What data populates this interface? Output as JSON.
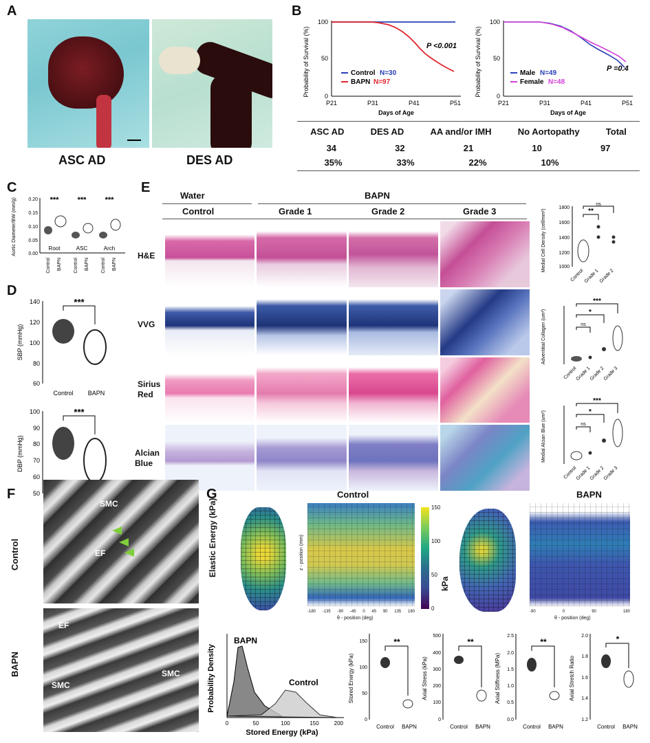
{
  "panels": {
    "A": {
      "label": "A",
      "left_caption": "ASC AD",
      "right_caption": "DES AD"
    },
    "B": {
      "label": "B",
      "p_left": "P <0.001",
      "p_right": "P =0.4",
      "ylabel": "Probability of Survival (%)",
      "xlabel": "Days of Age",
      "xticks": [
        "P21",
        "P31",
        "P41",
        "P51"
      ],
      "yticks": [
        "0",
        "50",
        "100"
      ],
      "legend_left": [
        {
          "name": "Control",
          "n": "N=30",
          "color": "#2a3fb6"
        },
        {
          "name": "BAPN",
          "n": "N=97",
          "color": "#e0232b"
        }
      ],
      "legend_right": [
        {
          "name": "Male",
          "n": "N=49",
          "color": "#2a3fb6"
        },
        {
          "name": "Female",
          "n": "N=48",
          "color": "#d23fd8"
        }
      ],
      "table": {
        "headers": [
          "ASC AD",
          "DES AD",
          "AA and/or IMH",
          "No Aortopathy",
          "Total"
        ],
        "row1": [
          "34",
          "32",
          "21",
          "10",
          "97"
        ],
        "row2": [
          "35%",
          "33%",
          "22%",
          "10%",
          ""
        ]
      }
    },
    "C": {
      "label": "C",
      "ylabel": "Aortic Diameter/BW (mm/g)",
      "groups": [
        "Root",
        "ASC",
        "Arch"
      ],
      "sig": "***",
      "yticks": [
        "0.00",
        "0.05",
        "0.10",
        "0.15",
        "0.20"
      ],
      "xlabels": [
        "Control",
        "BAPN"
      ]
    },
    "D": {
      "label": "D",
      "sbp_label": "SBP (mmHg)",
      "dbp_label": "DBP (mmHg)",
      "sig": "***",
      "sbp_ticks": [
        "60",
        "80",
        "100",
        "120",
        "140"
      ],
      "dbp_ticks": [
        "50",
        "60",
        "70",
        "80",
        "90",
        "100"
      ],
      "xlabels": [
        "Control",
        "BAPN"
      ]
    },
    "E": {
      "label": "E",
      "water": "Water",
      "bapn": "BAPN",
      "cols": [
        "Control",
        "Grade 1",
        "Grade 2",
        "Grade 3"
      ],
      "rows": [
        "H&E",
        "VVG",
        "Sirius Red",
        "Alcian Blue"
      ],
      "chart1_ylabel": "Medial Cell Density (cell/mm²)",
      "chart1_ticks": [
        "1000",
        "1200",
        "1400",
        "1600",
        "1800"
      ],
      "chart2_ylabel": "Adventitial Collagen (um²)",
      "chart3_ylabel": "Medial Alcian Blue (um²)",
      "sig_ns": "ns",
      "sig1": "**",
      "sig2": "*",
      "sig3": "***",
      "xcats3": [
        "Control",
        "Grade 1",
        "Grade 2",
        "Grade 3"
      ],
      "xcats2": [
        "Control",
        "Grade 1",
        "Grade 2"
      ]
    },
    "F": {
      "label": "F",
      "control": "Control",
      "bapn": "BAPN",
      "smc": "SMC",
      "ef": "EF"
    },
    "G": {
      "label": "G",
      "control": "Control",
      "bapn": "BAPN",
      "elastic": "Elastic Energy (kPa)",
      "kpa": "kPa",
      "colorbar_ticks": [
        "150",
        "100",
        "50",
        "0"
      ],
      "xaxis": "θ - position (deg)",
      "zaxis": "z - position (mm)",
      "theta_ticks": [
        "-180",
        "-135",
        "-90",
        "-45",
        "0",
        "45",
        "90",
        "135",
        "180"
      ],
      "density_ylabel": "Probability Density",
      "density_xlabel": "Stored Energy (kPa)",
      "density_ticks": [
        "0",
        "50",
        "100",
        "150",
        "200"
      ],
      "bars": [
        {
          "ylabel": "Stored Energy (kPa)",
          "sig": "**",
          "ticks": [
            "0",
            "50",
            "100",
            "150"
          ]
        },
        {
          "ylabel": "Axial Stress (kPa)",
          "sig": "**",
          "ticks": [
            "0",
            "100",
            "200",
            "300",
            "400",
            "500"
          ]
        },
        {
          "ylabel": "Axial Stiffness (MPa)",
          "sig": "**",
          "ticks": [
            "0.0",
            "0.5",
            "1.0",
            "1.5",
            "2.0",
            "2.5"
          ]
        },
        {
          "ylabel": "Axial Stretch Ratio",
          "sig": "*",
          "ticks": [
            "1.2",
            "1.4",
            "1.6",
            "1.8",
            "2.0"
          ]
        }
      ],
      "xlabels": [
        "Control",
        "BAPN"
      ]
    }
  },
  "chart_data": [
    {
      "type": "line",
      "title": "",
      "xlabel": "Days of Age",
      "ylabel": "Probability of Survival (%)",
      "x": [
        "P21",
        "P31",
        "P41",
        "P51"
      ],
      "ylim": [
        0,
        100
      ],
      "series": [
        {
          "name": "Control",
          "values": [
            100,
            100,
            100,
            100
          ]
        },
        {
          "name": "BAPN",
          "values": [
            100,
            99,
            80,
            40
          ]
        }
      ]
    },
    {
      "type": "line",
      "title": "",
      "xlabel": "Days of Age",
      "ylabel": "Probability of Survival (%)",
      "x": [
        "P21",
        "P31",
        "P41",
        "P51"
      ],
      "ylim": [
        0,
        100
      ],
      "series": [
        {
          "name": "Male",
          "values": [
            100,
            98,
            80,
            35
          ]
        },
        {
          "name": "Female",
          "values": [
            100,
            98,
            82,
            45
          ]
        }
      ]
    }
  ]
}
